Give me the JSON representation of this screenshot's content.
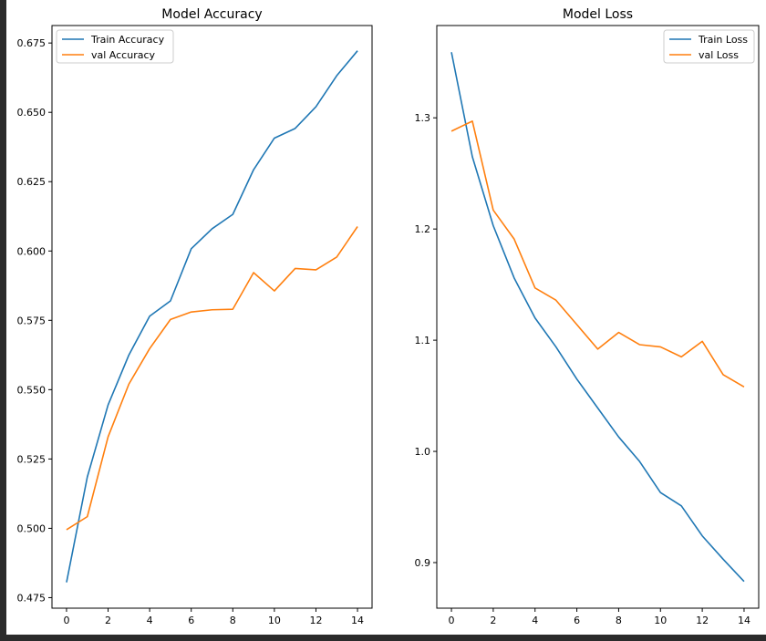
{
  "colors": {
    "train": "#1f77b4",
    "val": "#ff7f0e",
    "background": "#2b2b2b"
  },
  "chart_data": [
    {
      "type": "line",
      "title": "Model Accuracy",
      "xlabel": "",
      "ylabel": "",
      "x": [
        0,
        1,
        2,
        3,
        4,
        5,
        6,
        7,
        8,
        9,
        10,
        11,
        12,
        13,
        14
      ],
      "series": [
        {
          "name": "Train Accuracy",
          "color": "#1f77b4",
          "values": [
            0.4805,
            0.5185,
            0.5445,
            0.5625,
            0.5765,
            0.582,
            0.6008,
            0.608,
            0.6132,
            0.6293,
            0.6407,
            0.6442,
            0.652,
            0.6632,
            0.6722
          ]
        },
        {
          "name": "val Accuracy",
          "color": "#ff7f0e",
          "values": [
            0.4995,
            0.5042,
            0.533,
            0.552,
            0.5648,
            0.5753,
            0.578,
            0.5788,
            0.579,
            0.5922,
            0.5856,
            0.5937,
            0.5932,
            0.5978,
            0.6088
          ]
        }
      ],
      "xlim": [
        -0.7,
        14.7
      ],
      "ylim": [
        0.4712,
        0.6813
      ],
      "xticks": [
        0,
        2,
        4,
        6,
        8,
        10,
        12,
        14
      ],
      "yticks": [
        0.475,
        0.5,
        0.525,
        0.55,
        0.575,
        0.6,
        0.625,
        0.65,
        0.675
      ],
      "ytick_labels": [
        "0.475",
        "0.500",
        "0.525",
        "0.550",
        "0.575",
        "0.600",
        "0.625",
        "0.650",
        "0.675"
      ],
      "legend": "upper left",
      "grid": false
    },
    {
      "type": "line",
      "title": "Model Loss",
      "xlabel": "",
      "ylabel": "",
      "x": [
        0,
        1,
        2,
        3,
        4,
        5,
        6,
        7,
        8,
        9,
        10,
        11,
        12,
        13,
        14
      ],
      "series": [
        {
          "name": "Train Loss",
          "color": "#1f77b4",
          "values": [
            1.359,
            1.265,
            1.203,
            1.156,
            1.12,
            1.094,
            1.065,
            1.039,
            1.013,
            0.991,
            0.963,
            0.951,
            0.924,
            0.903,
            0.883
          ]
        },
        {
          "name": "val Loss",
          "color": "#ff7f0e",
          "values": [
            1.288,
            1.297,
            1.217,
            1.191,
            1.147,
            1.136,
            1.114,
            1.092,
            1.107,
            1.096,
            1.094,
            1.085,
            1.099,
            1.069,
            1.058
          ]
        }
      ],
      "xlim": [
        -0.7,
        14.7
      ],
      "ylim": [
        0.859,
        1.383
      ],
      "xticks": [
        0,
        2,
        4,
        6,
        8,
        10,
        12,
        14
      ],
      "yticks": [
        0.9,
        1.0,
        1.1,
        1.2,
        1.3
      ],
      "ytick_labels": [
        "0.9",
        "1.0",
        "1.1",
        "1.2",
        "1.3"
      ],
      "legend": "upper right",
      "grid": false
    }
  ]
}
